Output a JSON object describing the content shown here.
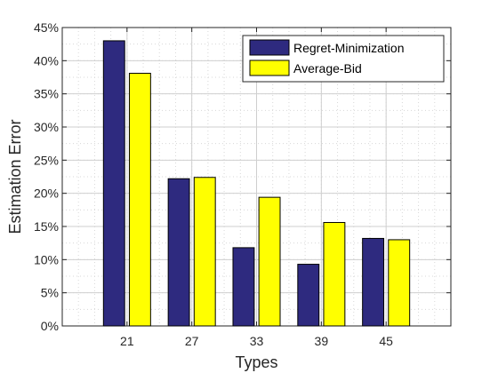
{
  "chart_data": {
    "type": "bar",
    "title": "",
    "xlabel": "Types",
    "ylabel": "Estimation Error",
    "categories": [
      "21",
      "27",
      "33",
      "39",
      "45"
    ],
    "series": [
      {
        "name": "Regret-Minimization",
        "color": "#2e2a7f",
        "values": [
          0.43,
          0.222,
          0.118,
          0.093,
          0.132
        ]
      },
      {
        "name": "Average-Bid",
        "color": "#ffff00",
        "values": [
          0.381,
          0.224,
          0.194,
          0.156,
          0.13
        ]
      }
    ],
    "ylim": [
      0,
      0.45
    ],
    "yticks": [
      0,
      0.05,
      0.1,
      0.15,
      0.2,
      0.25,
      0.3,
      0.35,
      0.4,
      0.45
    ],
    "ytick_labels": [
      "0%",
      "5%",
      "10%",
      "15%",
      "20%",
      "25%",
      "30%",
      "35%",
      "40%",
      "45%"
    ],
    "grid": true,
    "minor_grid": true,
    "legend_position": "top-right"
  }
}
